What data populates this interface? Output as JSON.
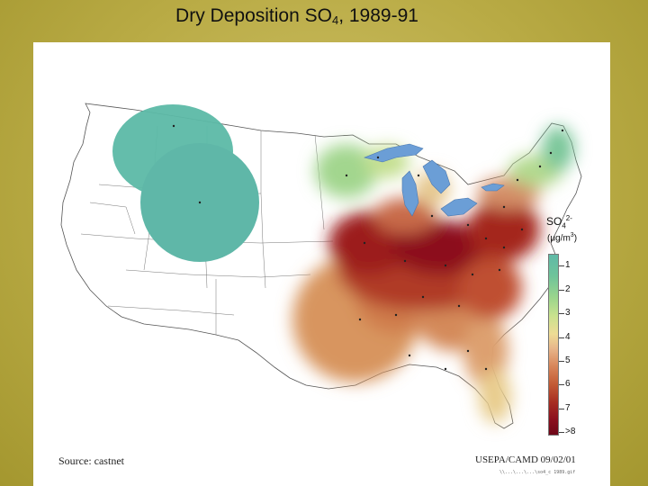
{
  "slide": {
    "title_prefix": "Dry Deposition SO",
    "title_sub": "4",
    "title_suffix": ", 1989-91"
  },
  "legend": {
    "title_main": "SO",
    "title_sub": "4",
    "title_sup": "2-",
    "unit_open": "(",
    "unit_mu": "μg/m",
    "unit_sup": "3",
    "unit_close": ")",
    "ticks": [
      "1",
      "2",
      "3",
      "4",
      "5",
      "6",
      "7",
      ">8"
    ],
    "colors": [
      "#5fb9a7",
      "#6fc49a",
      "#9bd58c",
      "#eedc95",
      "#d8865a",
      "#c35b35",
      "#a72e22",
      "#6d0718"
    ]
  },
  "footer": {
    "source": "Source: castnet",
    "credit": "USEPA/CAMD 09/02/01",
    "file_path": "\\\\...\\...\\...\\so4_c 1989.gif"
  }
}
